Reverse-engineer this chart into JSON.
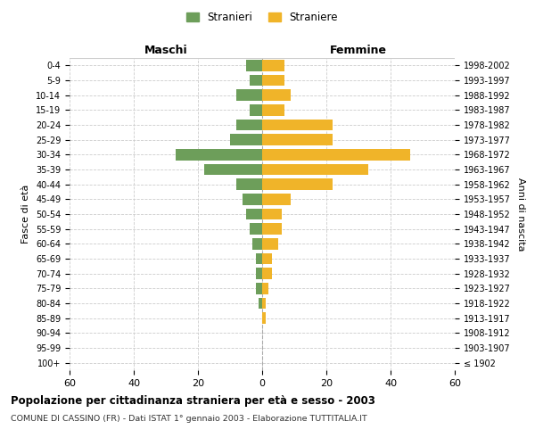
{
  "age_groups": [
    "100+",
    "95-99",
    "90-94",
    "85-89",
    "80-84",
    "75-79",
    "70-74",
    "65-69",
    "60-64",
    "55-59",
    "50-54",
    "45-49",
    "40-44",
    "35-39",
    "30-34",
    "25-29",
    "20-24",
    "15-19",
    "10-14",
    "5-9",
    "0-4"
  ],
  "birth_years": [
    "≤ 1902",
    "1903-1907",
    "1908-1912",
    "1913-1917",
    "1918-1922",
    "1923-1927",
    "1928-1932",
    "1933-1937",
    "1938-1942",
    "1943-1947",
    "1948-1952",
    "1953-1957",
    "1958-1962",
    "1963-1967",
    "1968-1972",
    "1973-1977",
    "1978-1982",
    "1983-1987",
    "1988-1992",
    "1993-1997",
    "1998-2002"
  ],
  "maschi": [
    0,
    0,
    0,
    0,
    1,
    2,
    2,
    2,
    3,
    4,
    5,
    6,
    8,
    18,
    27,
    10,
    8,
    4,
    8,
    4,
    5
  ],
  "femmine": [
    0,
    0,
    0,
    1,
    1,
    2,
    3,
    3,
    5,
    6,
    6,
    9,
    22,
    33,
    46,
    22,
    22,
    7,
    9,
    7,
    7
  ],
  "maschi_color": "#6d9e5a",
  "femmine_color": "#f0b429",
  "background_color": "#ffffff",
  "grid_color": "#cccccc",
  "title": "Popolazione per cittadinanza straniera per età e sesso - 2003",
  "subtitle": "COMUNE DI CASSINO (FR) - Dati ISTAT 1° gennaio 2003 - Elaborazione TUTTITALIA.IT",
  "ylabel_left": "Fasce di età",
  "ylabel_right": "Anni di nascita",
  "xlabel_left": "Maschi",
  "xlabel_right": "Femmine",
  "legend_stranieri": "Stranieri",
  "legend_straniere": "Straniere",
  "xlim": 60
}
